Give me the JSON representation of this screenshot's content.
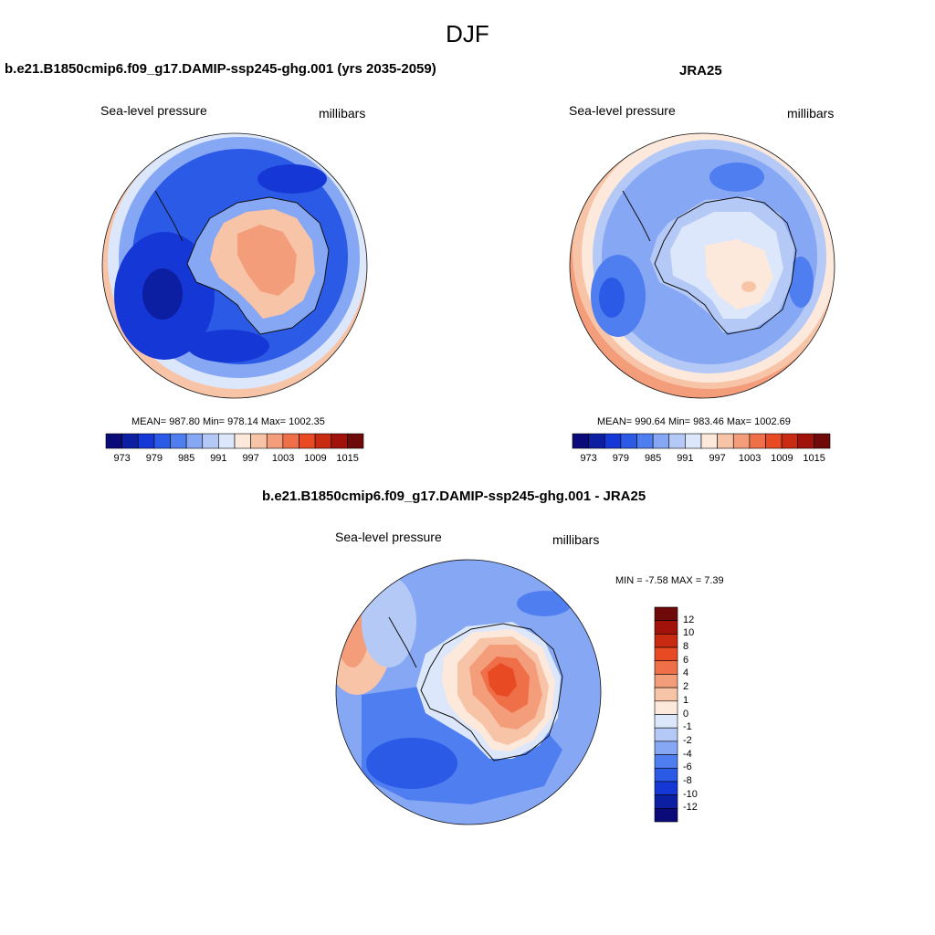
{
  "figure": {
    "title": "DJF"
  },
  "panels": [
    {
      "title": "b.e21.B1850cmip6.f09_g17.DAMIP-ssp245-ghg.001 (yrs 2035-2059)",
      "variable": "Sea-level pressure",
      "units": "millibars",
      "stats": "MEAN= 987.80  Min= 978.14  Max= 1002.35",
      "colorbar_ticks": [
        "973",
        "979",
        "985",
        "991",
        "997",
        "1003",
        "1009",
        "1015"
      ]
    },
    {
      "title": "JRA25",
      "variable": "Sea-level pressure",
      "units": "millibars",
      "stats": "MEAN= 990.64  Min= 983.46  Max= 1002.69",
      "colorbar_ticks": [
        "973",
        "979",
        "985",
        "991",
        "997",
        "1003",
        "1009",
        "1015"
      ]
    },
    {
      "title": "b.e21.B1850cmip6.f09_g17.DAMIP-ssp245-ghg.001 - JRA25",
      "variable": "Sea-level pressure",
      "units": "millibars",
      "stats": "MIN =  -7.58 MAX =   7.39",
      "colorbar_ticks": [
        "12",
        "10",
        "8",
        "6",
        "4",
        "2",
        "1",
        "0",
        "-1",
        "-2",
        "-4",
        "-6",
        "-8",
        "-10",
        "-12"
      ]
    }
  ],
  "colors": {
    "abs_scale": [
      "#0a0a78",
      "#0c1fa3",
      "#1537d6",
      "#2b5ae6",
      "#4f7ef0",
      "#86a7f3",
      "#b5c9f7",
      "#dce7fb",
      "#fde9dc",
      "#f8c4a8",
      "#f49d7b",
      "#ef6f48",
      "#e84b24",
      "#c82a12",
      "#a0120a",
      "#6e0a0a"
    ],
    "diff_scale": [
      "#6e0a0a",
      "#a0120a",
      "#c82a12",
      "#e84b24",
      "#ef6f48",
      "#f49d7b",
      "#f8c4a8",
      "#fde9dc",
      "#dce7fb",
      "#b5c9f7",
      "#86a7f3",
      "#4f7ef0",
      "#2b5ae6",
      "#1537d6",
      "#0c1fa3",
      "#0a0a78"
    ]
  }
}
